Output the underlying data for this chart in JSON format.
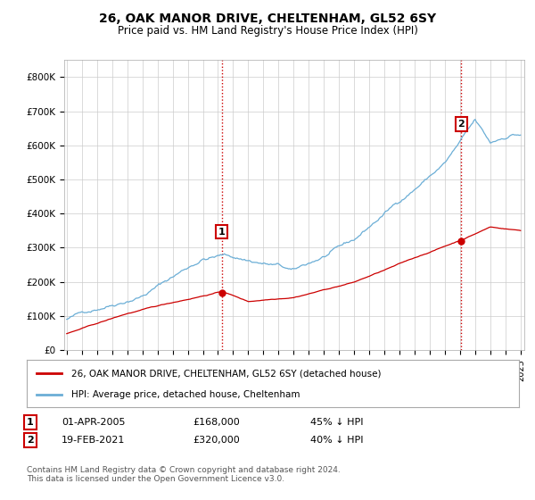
{
  "title_line1": "26, OAK MANOR DRIVE, CHELTENHAM, GL52 6SY",
  "title_line2": "Price paid vs. HM Land Registry's House Price Index (HPI)",
  "ylim": [
    0,
    850000
  ],
  "yticks": [
    0,
    100000,
    200000,
    300000,
    400000,
    500000,
    600000,
    700000,
    800000
  ],
  "ytick_labels": [
    "£0",
    "£100K",
    "£200K",
    "£300K",
    "£400K",
    "£500K",
    "£600K",
    "£700K",
    "£800K"
  ],
  "hpi_color": "#6baed6",
  "price_color": "#cc0000",
  "vline_color": "#cc0000",
  "marker1_label": "1",
  "marker1_price": 168000,
  "marker1_date_str": "01-APR-2005",
  "marker1_pct": "45% ↓ HPI",
  "marker2_label": "2",
  "marker2_price": 320000,
  "marker2_date_str": "19-FEB-2021",
  "marker2_pct": "40% ↓ HPI",
  "legend_line1": "26, OAK MANOR DRIVE, CHELTENHAM, GL52 6SY (detached house)",
  "legend_line2": "HPI: Average price, detached house, Cheltenham",
  "footer": "Contains HM Land Registry data © Crown copyright and database right 2024.\nThis data is licensed under the Open Government Licence v3.0.",
  "background_color": "#ffffff",
  "plot_bg_color": "#ffffff",
  "grid_color": "#cccccc",
  "n_months": 361
}
